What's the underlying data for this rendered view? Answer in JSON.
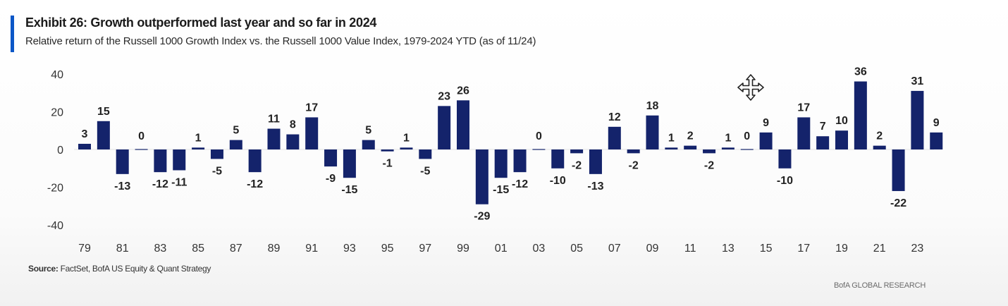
{
  "exhibit": {
    "title": "Exhibit 26: Growth outperformed last year and so far in 2024",
    "subtitle": "Relative return of the Russell 1000 Growth Index vs. the Russell 1000 Value Index, 1979-2024 YTD (as of 11/24)",
    "source_label": "Source:",
    "source_text": " FactSet, BofA US Equity & Quant Strategy",
    "brand": "BofA GLOBAL RESEARCH",
    "accent_color": "#0b57c7",
    "cursor_icon": "move-cursor-icon"
  },
  "chart_data": {
    "type": "bar",
    "title": "Exhibit 26: Growth outperformed last year and so far in 2024",
    "subtitle": "Relative return of the Russell 1000 Growth Index vs. the Russell 1000 Value Index, 1979-2024 YTD (as of 11/24)",
    "xlabel": "",
    "ylabel": "",
    "ylim": [
      -40,
      40
    ],
    "yticks": [
      40,
      20,
      0,
      -20,
      -40
    ],
    "grid": false,
    "legend": "none",
    "bar_color": "#14236b",
    "categories": [
      "79",
      "80",
      "81",
      "82",
      "83",
      "84",
      "85",
      "86",
      "87",
      "88",
      "89",
      "90",
      "91",
      "92",
      "93",
      "94",
      "95",
      "96",
      "97",
      "98",
      "99",
      "00",
      "01",
      "02",
      "03",
      "04",
      "05",
      "06",
      "07",
      "08",
      "09",
      "10",
      "11",
      "12",
      "13",
      "14",
      "15",
      "16",
      "17",
      "18",
      "19",
      "20",
      "21",
      "22",
      "23",
      "24"
    ],
    "tick_labels": [
      "79",
      "",
      "81",
      "",
      "83",
      "",
      "85",
      "",
      "87",
      "",
      "89",
      "",
      "91",
      "",
      "93",
      "",
      "95",
      "",
      "97",
      "",
      "99",
      "",
      "01",
      "",
      "03",
      "",
      "05",
      "",
      "07",
      "",
      "09",
      "",
      "11",
      "",
      "13",
      "",
      "15",
      "",
      "17",
      "",
      "19",
      "",
      "21",
      "",
      "23",
      ""
    ],
    "values": [
      3,
      15,
      -13,
      0,
      -12,
      -11,
      1,
      -5,
      5,
      -12,
      11,
      8,
      17,
      -9,
      -15,
      5,
      -1,
      1,
      -5,
      23,
      26,
      -29,
      -15,
      -12,
      0,
      -10,
      -2,
      -13,
      12,
      -2,
      18,
      1,
      2,
      -2,
      1,
      0,
      9,
      -10,
      17,
      7,
      10,
      36,
      2,
      -22,
      31,
      9
    ]
  }
}
